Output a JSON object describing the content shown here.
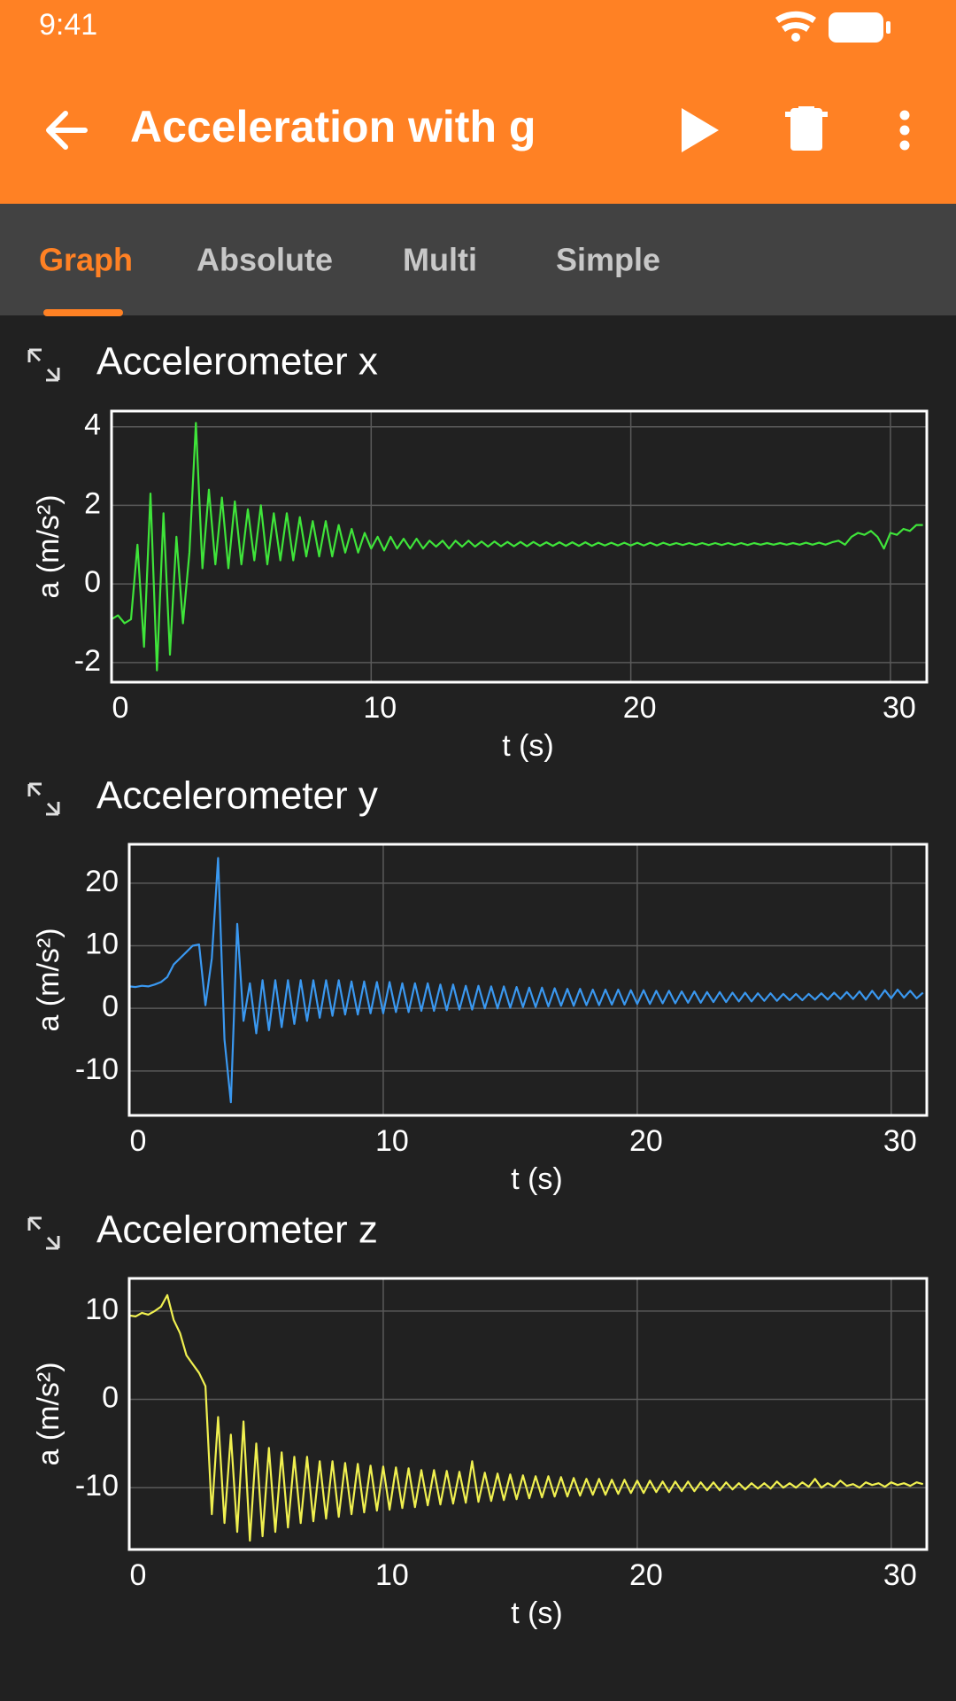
{
  "status_bar": {
    "time": "9:41"
  },
  "app_bar": {
    "title": "Acceleration with g"
  },
  "tabs": [
    "Graph",
    "Absolute",
    "Multi",
    "Simple"
  ],
  "chart_data": [
    {
      "type": "line",
      "title": "Accelerometer x",
      "xlabel": "t (s)",
      "ylabel": "a (m/s²)",
      "color": "#3fe43a",
      "grid": true,
      "xlim": [
        0,
        31.4
      ],
      "xticks": [
        0,
        10,
        20,
        30
      ],
      "ylim": [
        -2.5,
        4.4
      ],
      "yticks": [
        -2,
        0,
        2,
        4
      ],
      "x": [
        0,
        0.25,
        0.5,
        0.75,
        1,
        1.25,
        1.5,
        1.75,
        2,
        2.25,
        2.5,
        2.75,
        3,
        3.25,
        3.5,
        3.75,
        4,
        4.25,
        4.5,
        4.75,
        5,
        5.25,
        5.5,
        5.75,
        6,
        6.25,
        6.5,
        6.75,
        7,
        7.25,
        7.5,
        7.75,
        8,
        8.25,
        8.5,
        8.75,
        9,
        9.25,
        9.5,
        9.75,
        10,
        10.25,
        10.5,
        10.75,
        11,
        11.25,
        11.5,
        11.75,
        12,
        12.25,
        12.5,
        12.75,
        13,
        13.25,
        13.5,
        13.75,
        14,
        14.25,
        14.5,
        14.75,
        15,
        15.25,
        15.5,
        15.75,
        16,
        16.25,
        16.5,
        16.75,
        17,
        17.25,
        17.5,
        17.75,
        18,
        18.25,
        18.5,
        18.75,
        19,
        19.25,
        19.5,
        19.75,
        20,
        20.25,
        20.5,
        20.75,
        21,
        21.25,
        21.5,
        21.75,
        22,
        22.25,
        22.5,
        22.75,
        23,
        23.25,
        23.5,
        23.75,
        24,
        24.25,
        24.5,
        24.75,
        25,
        25.25,
        25.5,
        25.75,
        26,
        26.25,
        26.5,
        26.75,
        27,
        27.25,
        27.5,
        27.75,
        28,
        28.25,
        28.5,
        28.75,
        29,
        29.25,
        29.5,
        29.75,
        30,
        30.25,
        30.5,
        30.75,
        31,
        31.25
      ],
      "values": [
        -0.9,
        -0.8,
        -1.0,
        -0.9,
        1.0,
        -1.6,
        2.3,
        -2.2,
        1.8,
        -1.8,
        1.2,
        -1.0,
        0.8,
        4.1,
        0.4,
        2.4,
        0.5,
        2.2,
        0.4,
        2.1,
        0.5,
        1.9,
        0.6,
        2.0,
        0.5,
        1.8,
        0.6,
        1.8,
        0.6,
        1.7,
        0.7,
        1.6,
        0.7,
        1.6,
        0.7,
        1.5,
        0.8,
        1.4,
        0.8,
        1.3,
        0.9,
        1.2,
        0.85,
        1.2,
        0.9,
        1.15,
        0.9,
        1.15,
        0.9,
        1.1,
        0.95,
        1.1,
        0.9,
        1.1,
        0.95,
        1.1,
        0.95,
        1.08,
        0.95,
        1.08,
        0.96,
        1.07,
        0.96,
        1.07,
        0.96,
        1.07,
        0.97,
        1.06,
        0.97,
        1.06,
        0.97,
        1.06,
        0.97,
        1.06,
        0.97,
        1.05,
        0.98,
        1.05,
        0.98,
        1.05,
        0.98,
        1.05,
        0.98,
        1.05,
        0.98,
        1.05,
        0.99,
        1.04,
        0.99,
        1.04,
        0.99,
        1.04,
        0.99,
        1.04,
        0.99,
        1.04,
        0.99,
        1.04,
        0.99,
        1.04,
        1.0,
        1.04,
        1.0,
        1.04,
        1.0,
        1.04,
        1.0,
        1.05,
        1.0,
        1.05,
        1.0,
        1.06,
        1.1,
        1.0,
        1.2,
        1.3,
        1.25,
        1.35,
        1.2,
        0.9,
        1.3,
        1.25,
        1.4,
        1.35,
        1.5,
        1.5
      ]
    },
    {
      "type": "line",
      "title": "Accelerometer y",
      "xlabel": "t (s)",
      "ylabel": "a (m/s²)",
      "color": "#3a98f0",
      "grid": true,
      "xlim": [
        0,
        31.4
      ],
      "xticks": [
        0,
        10,
        20,
        30
      ],
      "ylim": [
        -17.1,
        26.2
      ],
      "yticks": [
        -10,
        0,
        10,
        20
      ],
      "x": [
        0,
        0.25,
        0.5,
        0.75,
        1,
        1.25,
        1.5,
        1.75,
        2,
        2.25,
        2.5,
        2.75,
        3,
        3.25,
        3.5,
        3.75,
        4,
        4.25,
        4.5,
        4.75,
        5,
        5.25,
        5.5,
        5.75,
        6,
        6.25,
        6.5,
        6.75,
        7,
        7.25,
        7.5,
        7.75,
        8,
        8.25,
        8.5,
        8.75,
        9,
        9.25,
        9.5,
        9.75,
        10,
        10.25,
        10.5,
        10.75,
        11,
        11.25,
        11.5,
        11.75,
        12,
        12.25,
        12.5,
        12.75,
        13,
        13.25,
        13.5,
        13.75,
        14,
        14.25,
        14.5,
        14.75,
        15,
        15.25,
        15.5,
        15.75,
        16,
        16.25,
        16.5,
        16.75,
        17,
        17.25,
        17.5,
        17.75,
        18,
        18.25,
        18.5,
        18.75,
        19,
        19.25,
        19.5,
        19.75,
        20,
        20.25,
        20.5,
        20.75,
        21,
        21.25,
        21.5,
        21.75,
        22,
        22.25,
        22.5,
        22.75,
        23,
        23.25,
        23.5,
        23.75,
        24,
        24.25,
        24.5,
        24.75,
        25,
        25.25,
        25.5,
        25.75,
        26,
        26.25,
        26.5,
        26.75,
        27,
        27.25,
        27.5,
        27.75,
        28,
        28.25,
        28.5,
        28.75,
        29,
        29.25,
        29.5,
        29.75,
        30,
        30.25,
        30.5,
        30.75,
        31,
        31.25
      ],
      "values": [
        3.5,
        3.4,
        3.6,
        3.5,
        3.8,
        4.2,
        5.0,
        7.0,
        8.0,
        9.0,
        10.0,
        10.2,
        0.5,
        8.0,
        24.0,
        -5.0,
        -15.0,
        13.5,
        -2.0,
        4.0,
        -4,
        4.5,
        -3.5,
        4.5,
        -3,
        4.5,
        -2.5,
        4.5,
        -2,
        4.5,
        -1.5,
        4.5,
        -1.2,
        4.5,
        -1,
        4.3,
        -1,
        4.3,
        -0.8,
        4.2,
        -0.8,
        4.2,
        -0.6,
        4.0,
        -0.6,
        4.0,
        -0.4,
        4.0,
        -0.4,
        3.8,
        -0.3,
        3.8,
        -0.2,
        3.6,
        -0.2,
        3.6,
        0,
        3.5,
        0,
        3.5,
        0.1,
        3.4,
        0.2,
        3.3,
        0.2,
        3.3,
        0.3,
        3.2,
        0.4,
        3.1,
        0.4,
        3.1,
        0.5,
        3.0,
        0.5,
        3.0,
        0.6,
        3.0,
        0.6,
        2.9,
        0.7,
        2.9,
        0.7,
        2.8,
        0.8,
        2.8,
        0.8,
        2.7,
        0.9,
        2.7,
        0.9,
        2.6,
        1.0,
        2.6,
        1.0,
        2.5,
        1.1,
        2.5,
        1.1,
        2.4,
        1.2,
        2.4,
        1.2,
        2.3,
        1.3,
        2.3,
        1.3,
        2.3,
        1.4,
        2.4,
        1.4,
        2.5,
        1.5,
        2.6,
        1.5,
        2.7,
        1.4,
        2.8,
        1.5,
        2.9,
        1.6,
        3.0,
        1.7,
        2.8,
        1.6,
        2.5
      ]
    },
    {
      "type": "line",
      "title": "Accelerometer z",
      "xlabel": "t (s)",
      "ylabel": "a (m/s²)",
      "color": "#f0f050",
      "grid": true,
      "xlim": [
        0,
        31.4
      ],
      "xticks": [
        0,
        10,
        20,
        30
      ],
      "ylim": [
        -17.0,
        13.7
      ],
      "yticks": [
        -10,
        0,
        10
      ],
      "x": [
        0,
        0.25,
        0.5,
        0.75,
        1,
        1.25,
        1.5,
        1.75,
        2,
        2.25,
        2.5,
        2.75,
        3,
        3.25,
        3.5,
        3.75,
        4,
        4.25,
        4.5,
        4.75,
        5,
        5.25,
        5.5,
        5.75,
        6,
        6.25,
        6.5,
        6.75,
        7,
        7.25,
        7.5,
        7.75,
        8,
        8.25,
        8.5,
        8.75,
        9,
        9.25,
        9.5,
        9.75,
        10,
        10.25,
        10.5,
        10.75,
        11,
        11.25,
        11.5,
        11.75,
        12,
        12.25,
        12.5,
        12.75,
        13,
        13.25,
        13.5,
        13.75,
        14,
        14.25,
        14.5,
        14.75,
        15,
        15.25,
        15.5,
        15.75,
        16,
        16.25,
        16.5,
        16.75,
        17,
        17.25,
        17.5,
        17.75,
        18,
        18.25,
        18.5,
        18.75,
        19,
        19.25,
        19.5,
        19.75,
        20,
        20.25,
        20.5,
        20.75,
        21,
        21.25,
        21.5,
        21.75,
        22,
        22.25,
        22.5,
        22.75,
        23,
        23.25,
        23.5,
        23.75,
        24,
        24.25,
        24.5,
        24.75,
        25,
        25.25,
        25.5,
        25.75,
        26,
        26.25,
        26.5,
        26.75,
        27,
        27.25,
        27.5,
        27.75,
        28,
        28.25,
        28.5,
        28.75,
        29,
        29.25,
        29.5,
        29.75,
        30,
        30.25,
        30.5,
        30.75,
        31,
        31.25
      ],
      "values": [
        9.5,
        9.4,
        9.8,
        9.6,
        10.0,
        10.5,
        11.8,
        9.0,
        7.5,
        5.0,
        4.0,
        3.0,
        1.5,
        -13.0,
        -2.0,
        -14.0,
        -4.0,
        -15.0,
        -2.5,
        -16.0,
        -5,
        -15.5,
        -5.5,
        -15,
        -6,
        -14.5,
        -6.5,
        -14,
        -6.5,
        -13.8,
        -7,
        -13.5,
        -7,
        -13.3,
        -7.2,
        -13,
        -7.3,
        -12.8,
        -7.5,
        -12.6,
        -7.6,
        -12.5,
        -7.7,
        -12.3,
        -7.8,
        -12.2,
        -8,
        -12,
        -8,
        -11.9,
        -8.1,
        -11.8,
        -8.2,
        -11.7,
        -7,
        -11.6,
        -8.3,
        -11.5,
        -8.4,
        -11.4,
        -8.5,
        -11.3,
        -8.6,
        -11.2,
        -8.7,
        -11.1,
        -8.7,
        -11.0,
        -8.8,
        -11.0,
        -8.9,
        -10.9,
        -9,
        -10.8,
        -9,
        -10.8,
        -9.1,
        -10.7,
        -9.1,
        -10.6,
        -9.2,
        -10.6,
        -9.2,
        -10.5,
        -9.3,
        -10.5,
        -9.3,
        -10.4,
        -9.3,
        -10.4,
        -9.4,
        -10.3,
        -9.4,
        -10.3,
        -9.4,
        -10.2,
        -9.5,
        -10.2,
        -9.5,
        -10.1,
        -9.5,
        -10.1,
        -9.3,
        -10.0,
        -9.5,
        -10.0,
        -9.4,
        -9.9,
        -9.0,
        -10.0,
        -9.5,
        -9.9,
        -9.2,
        -9.8,
        -9.6,
        -10.0,
        -9.4,
        -9.7,
        -9.5,
        -9.9,
        -9.4,
        -9.7,
        -9.5,
        -9.8,
        -9.4,
        -9.6
      ]
    }
  ]
}
